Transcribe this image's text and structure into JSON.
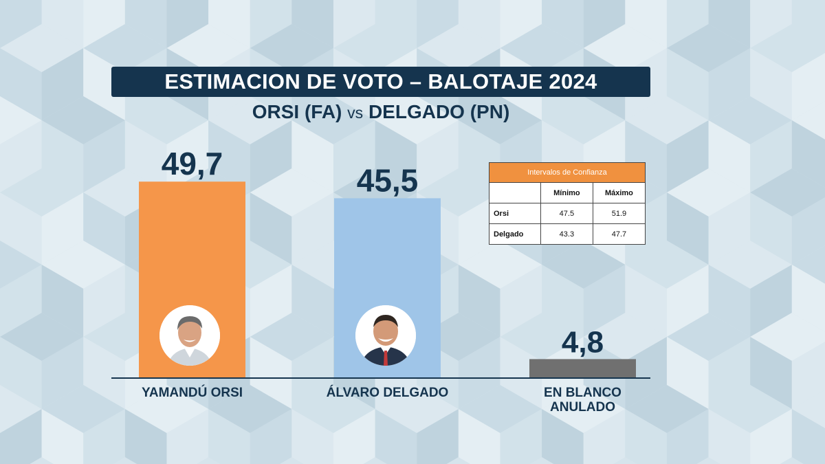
{
  "header": {
    "title": "ESTIMACION DE VOTO – BALOTAJE 2024",
    "subtitle_left": "ORSI (FA)",
    "subtitle_vs": "vs",
    "subtitle_right": "DELGADO (PN)"
  },
  "colors": {
    "title_bg": "#15344e",
    "text_dark": "#15344e",
    "orsi": "#f5964a",
    "delgado": "#9fc5e8",
    "blanco": "#707070",
    "table_header": "#f0913f",
    "background": "#d6e4ec"
  },
  "chart_data": {
    "type": "bar",
    "categories": [
      "YAMANDÚ ORSI",
      "ÁLVARO DELGADO",
      "EN BLANCO ANULADO"
    ],
    "category_lines": [
      [
        "YAMANDÚ ORSI"
      ],
      [
        "ÁLVARO DELGADO"
      ],
      [
        "EN BLANCO",
        "ANULADO"
      ]
    ],
    "values": [
      49.7,
      45.5,
      4.8
    ],
    "value_labels": [
      "49,7",
      "45,5",
      "4,8"
    ],
    "bar_colors": [
      "#f5964a",
      "#9fc5e8",
      "#707070"
    ],
    "title": "ESTIMACION DE VOTO – BALOTAJE 2024",
    "subtitle": "ORSI (FA) vs DELGADO (PN)",
    "xlabel": "",
    "ylabel": "",
    "ylim": [
      0,
      52
    ],
    "grid": false,
    "legend": "none"
  },
  "avatars": [
    {
      "name": "orsi-photo-icon"
    },
    {
      "name": "delgado-photo-icon"
    }
  ],
  "confidence_table": {
    "title": "Intervalos de Confianza",
    "columns": [
      "",
      "Mínimo",
      "Máximo"
    ],
    "rows": [
      {
        "label": "Orsi",
        "min": "47.5",
        "max": "51.9"
      },
      {
        "label": "Delgado",
        "min": "43.3",
        "max": "47.7"
      }
    ]
  }
}
